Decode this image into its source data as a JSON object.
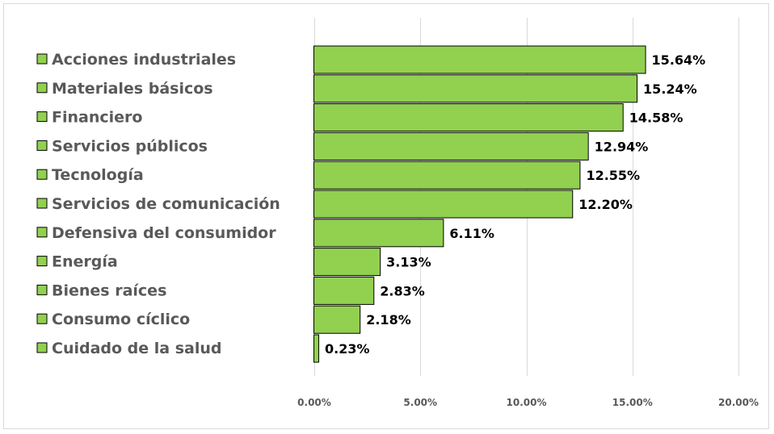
{
  "chart_data": {
    "type": "bar",
    "orientation": "horizontal",
    "categories": [
      "Acciones industriales",
      "Materiales básicos",
      "Financiero",
      "Servicios públicos",
      "Tecnología",
      "Servicios de comunicación",
      "Defensiva del consumidor",
      "Energía",
      "Bienes raíces",
      "Consumo cíclico",
      "Cuidado de la salud"
    ],
    "values": [
      15.64,
      15.24,
      14.58,
      12.94,
      12.55,
      12.2,
      6.11,
      3.13,
      2.83,
      2.18,
      0.23
    ],
    "data_labels": [
      "15.64%",
      "15.24%",
      "14.58%",
      "12.94%",
      "12.55%",
      "12.20%",
      "6.11%",
      "3.13%",
      "2.83%",
      "2.18%",
      "0.23%"
    ],
    "x_ticks": [
      "0.00%",
      "5.00%",
      "10.00%",
      "15.00%",
      "20.00%"
    ],
    "xlim": [
      0,
      20
    ],
    "grid": true,
    "legend": "left",
    "bar_color": "#92d050",
    "bar_border_color": "#000000",
    "grid_color": "#d9d9d9"
  }
}
